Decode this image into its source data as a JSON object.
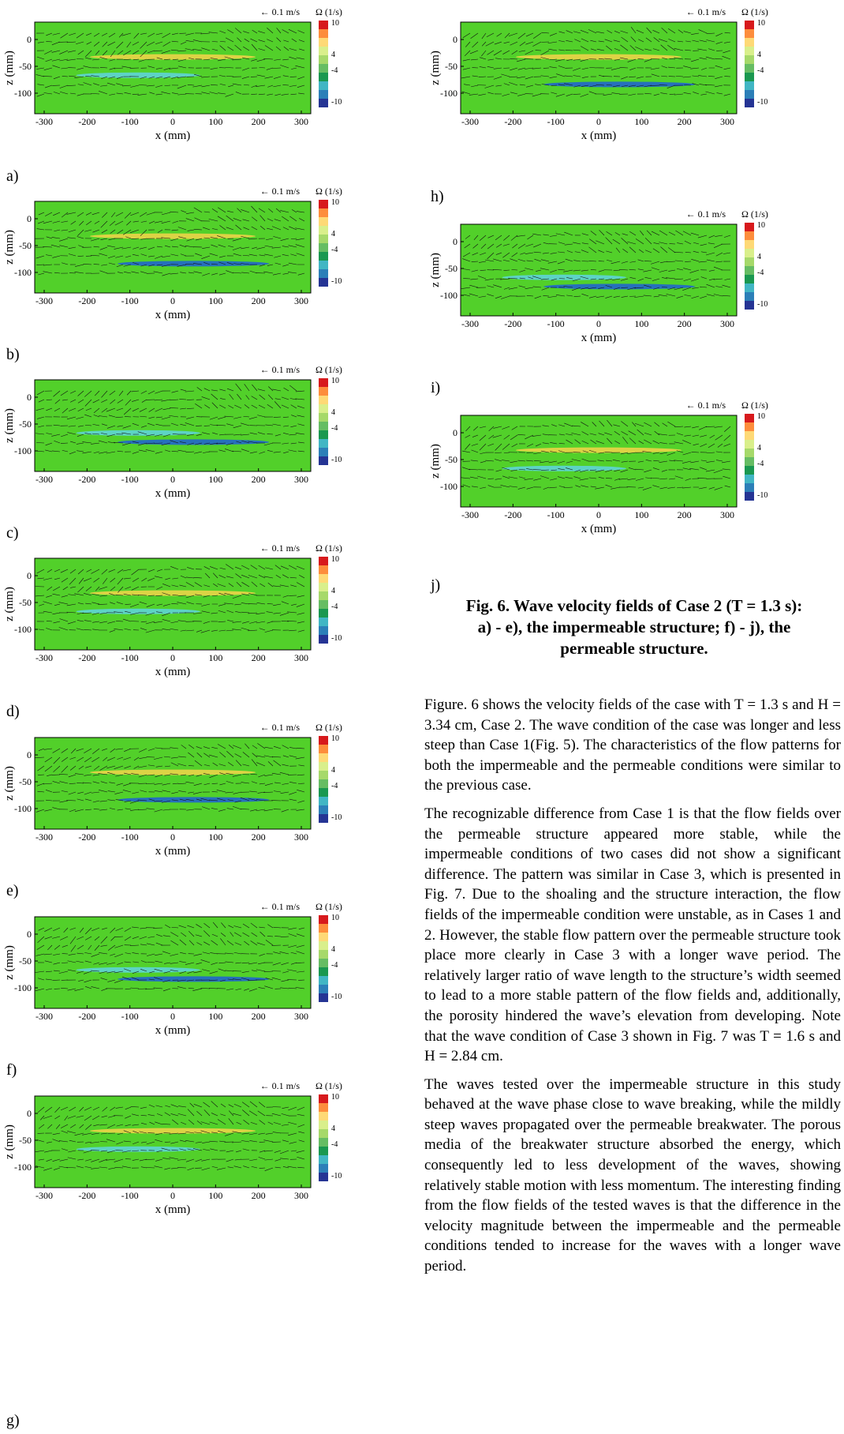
{
  "panel_common": {
    "x_ticks": [
      "-300",
      "-200",
      "-100",
      "0",
      "100",
      "200",
      "300"
    ],
    "y_ticks": [
      "0",
      "-50",
      "-100"
    ],
    "xlabel": "x (mm)",
    "ylabel": "z (mm)",
    "scale_label": "← 0.1 m/s",
    "colorbar_title": "Ω (1/s)",
    "colorbar_ticks": [
      "10",
      "4",
      "-4",
      "-10"
    ],
    "colorbar_colors": [
      "#d7191c",
      "#fd8d3c",
      "#fed976",
      "#d9ef8b",
      "#a6d96a",
      "#66bd63",
      "#1a9850",
      "#41b6c4",
      "#2c7fb8",
      "#253494"
    ],
    "field_color": "#52d02a"
  },
  "panels": [
    {
      "label": "a)"
    },
    {
      "label": "b)"
    },
    {
      "label": "c)"
    },
    {
      "label": "d)"
    },
    {
      "label": "e)"
    },
    {
      "label": "f)"
    },
    {
      "label": "g)"
    },
    {
      "label": "h)"
    },
    {
      "label": "i)"
    },
    {
      "label": "j)"
    }
  ],
  "caption": {
    "line1": "Fig. 6. Wave velocity fields of Case 2 (T = 1.3 s):",
    "line2": "a) - e), the impermeable structure; f) - j), the",
    "line3": "permeable structure."
  },
  "paragraphs": [
    "Figure. 6 shows the velocity fields of the case with T = 1.3 s and H = 3.34 cm, Case 2. The wave condition of the case was longer and less steep than Case 1(Fig. 5). The characteristics of the flow patterns for both the impermeable and the permeable conditions were similar to the previous case.",
    "The recognizable difference from Case 1 is that the flow fields over the permeable structure appeared more stable, while the impermeable conditions of two cases did not show a significant difference. The pattern was similar in Case 3, which is presented in Fig. 7. Due to the shoaling and the structure interaction, the flow fields of the impermeable condition were unstable, as in Cases 1 and 2. However, the stable flow pattern over the permeable structure took place more clearly in Case 3 with a longer wave period. The relatively larger ratio of wave length to the structure’s width seemed to lead to a more stable pattern of the flow fields and, additionally, the porosity hindered the wave’s elevation from developing. Note that the wave condition of Case 3 shown in Fig. 7 was T = 1.6 s and H = 2.84 cm.",
    "The waves tested over the impermeable structure in this study behaved at the wave phase close to wave breaking, while the mildly steep waves propagated over the permeable breakwater. The porous media of the breakwater structure absorbed the energy, which consequently led to less development of the waves, showing relatively stable motion with less momentum. The interesting finding from the flow fields of the tested waves is that the difference in the velocity magnitude between the impermeable and the permeable conditions tended to increase for the waves with a longer wave period."
  ]
}
